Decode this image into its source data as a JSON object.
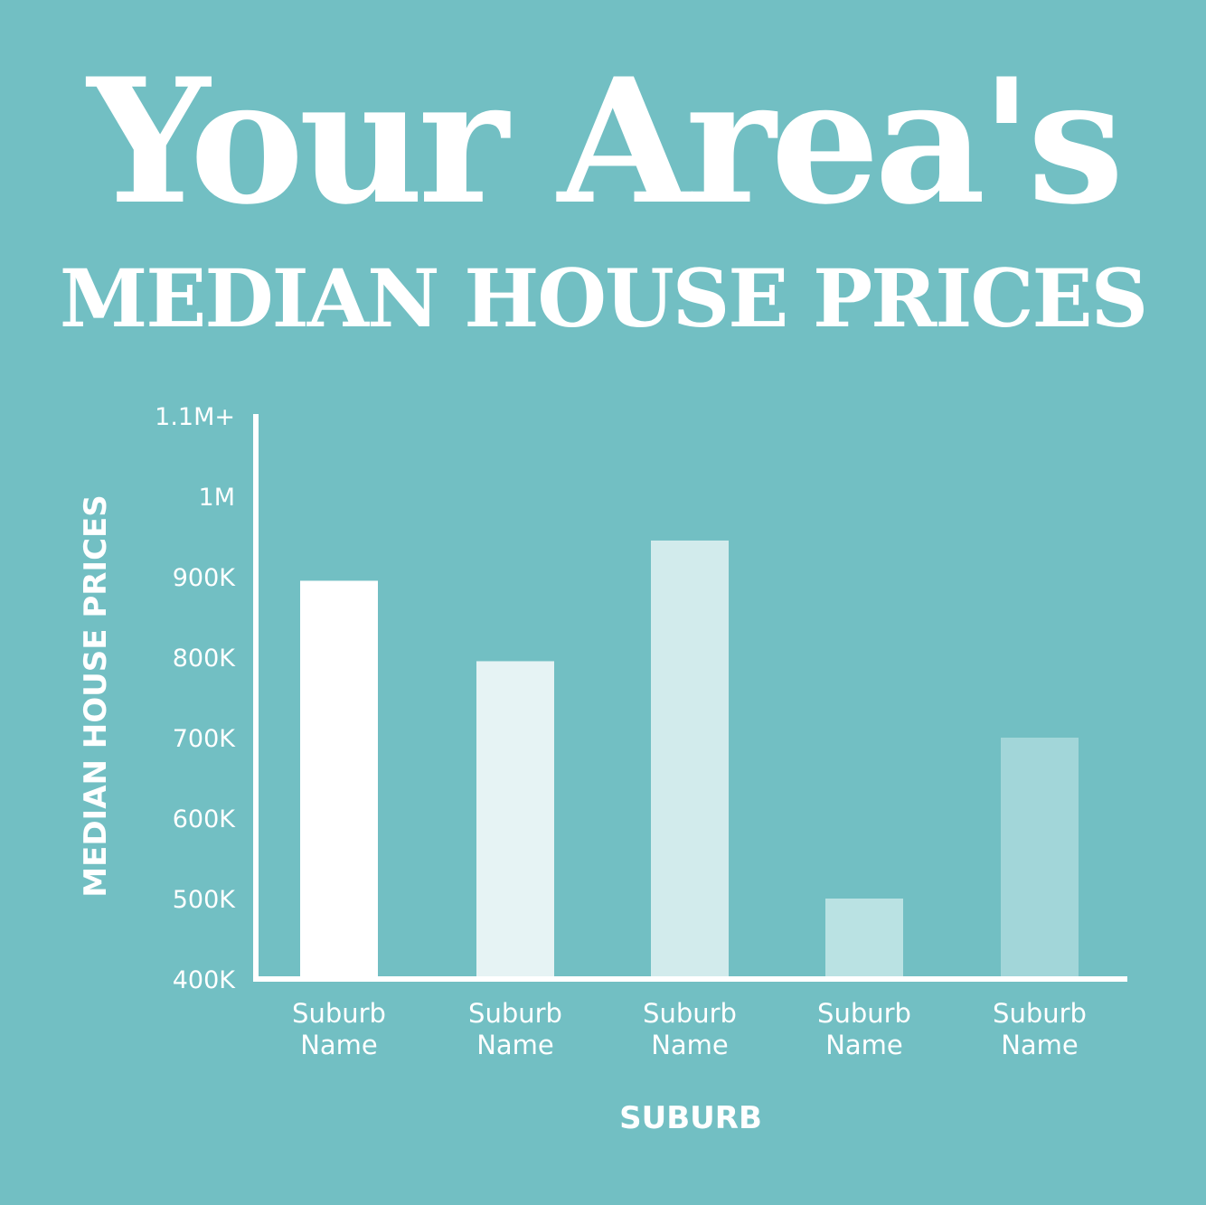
{
  "header": {
    "title": "Your Area's",
    "subtitle": "MEDIAN HOUSE PRICES"
  },
  "colors": {
    "background": "#72bfc3",
    "axis": "#ffffff",
    "text": "#ffffff"
  },
  "chart_data": {
    "type": "bar",
    "title": "",
    "xlabel": "SUBURB",
    "ylabel": "MEDIAN HOUSE PRICES",
    "ylim": [
      400000,
      1100000
    ],
    "y_ticks": [
      {
        "value": 400000,
        "label": "400K"
      },
      {
        "value": 500000,
        "label": "500K"
      },
      {
        "value": 600000,
        "label": "600K"
      },
      {
        "value": 700000,
        "label": "700K"
      },
      {
        "value": 800000,
        "label": "800K"
      },
      {
        "value": 900000,
        "label": "900K"
      },
      {
        "value": 1000000,
        "label": "1M"
      },
      {
        "value": 1100000,
        "label": "1.1M+"
      }
    ],
    "categories": [
      "Suburb Name",
      "Suburb Name",
      "Suburb Name",
      "Suburb Name",
      "Suburb Name"
    ],
    "values": [
      895000,
      795000,
      945000,
      500000,
      700000
    ],
    "bar_colors": [
      "#ffffff",
      "#e6f3f4",
      "#d2ebec",
      "#bae2e3",
      "#a2d6d9"
    ],
    "grid": false,
    "legend": "none"
  }
}
